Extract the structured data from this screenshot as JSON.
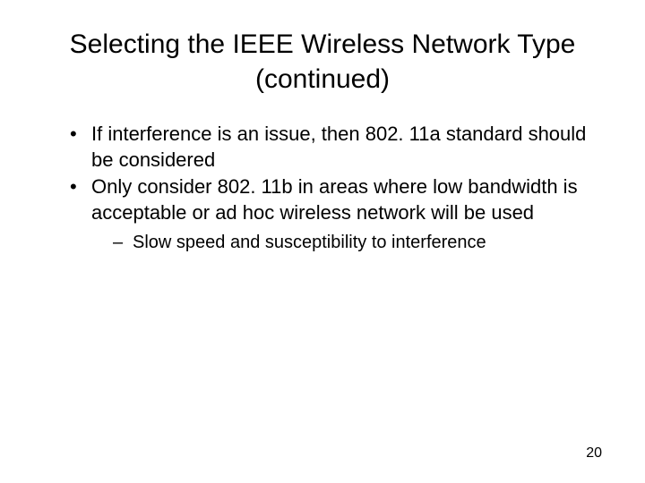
{
  "slide": {
    "title": "Selecting the IEEE Wireless Network Type (continued)",
    "bullets": [
      {
        "text": "If interference is an issue, then 802. 11a standard should be considered"
      },
      {
        "text": "Only consider 802. 11b in areas where low bandwidth is acceptable or ad hoc wireless network will be used",
        "sub": [
          "Slow speed and susceptibility to interference"
        ]
      }
    ],
    "page_number": "20"
  },
  "style": {
    "background_color": "#ffffff",
    "text_color": "#000000",
    "title_fontsize": 30,
    "bullet_fontsize": 22,
    "sub_fontsize": 20,
    "pagenum_fontsize": 16,
    "font_family": "Arial"
  }
}
